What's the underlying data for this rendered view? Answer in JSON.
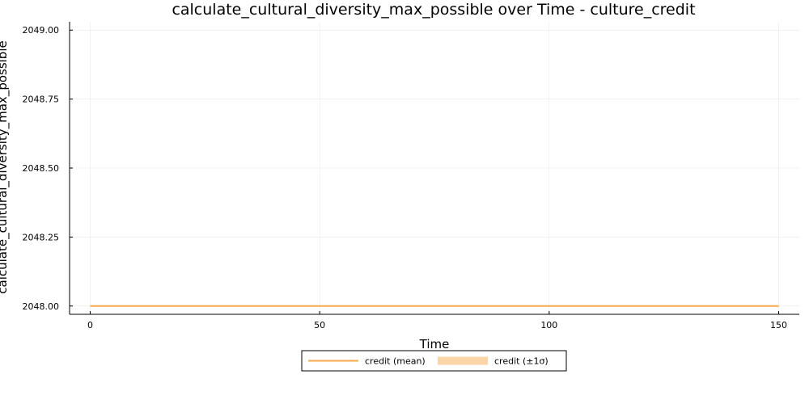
{
  "chart_data": {
    "type": "line",
    "title": "calculate_cultural_diversity_max_possible over Time - culture_credit",
    "xlabel": "Time",
    "ylabel": "calculate_cultural_diversity_max_possible",
    "xlim": [
      -4.5,
      154.5
    ],
    "ylim": [
      2047.97,
      2049.03
    ],
    "x_ticks": [
      0,
      50,
      100,
      150
    ],
    "x_tick_labels": [
      "0",
      "50",
      "100",
      "150"
    ],
    "y_ticks": [
      2048.0,
      2048.25,
      2048.5,
      2048.75,
      2049.0
    ],
    "y_tick_labels": [
      "2048.00",
      "2048.25",
      "2048.50",
      "2048.75",
      "2049.00"
    ],
    "grid": true,
    "legend_position": "bottom-center",
    "series": [
      {
        "name": "credit (mean)",
        "kind": "line",
        "color": "#F5A94A",
        "x": [
          0,
          150
        ],
        "y": [
          2048.0,
          2048.0
        ]
      },
      {
        "name": "credit (±1σ)",
        "kind": "band",
        "color": "#F9D5A7",
        "x": [
          0,
          150
        ],
        "lower": [
          2048.0,
          2048.0
        ],
        "upper": [
          2048.0,
          2048.0
        ]
      }
    ]
  }
}
